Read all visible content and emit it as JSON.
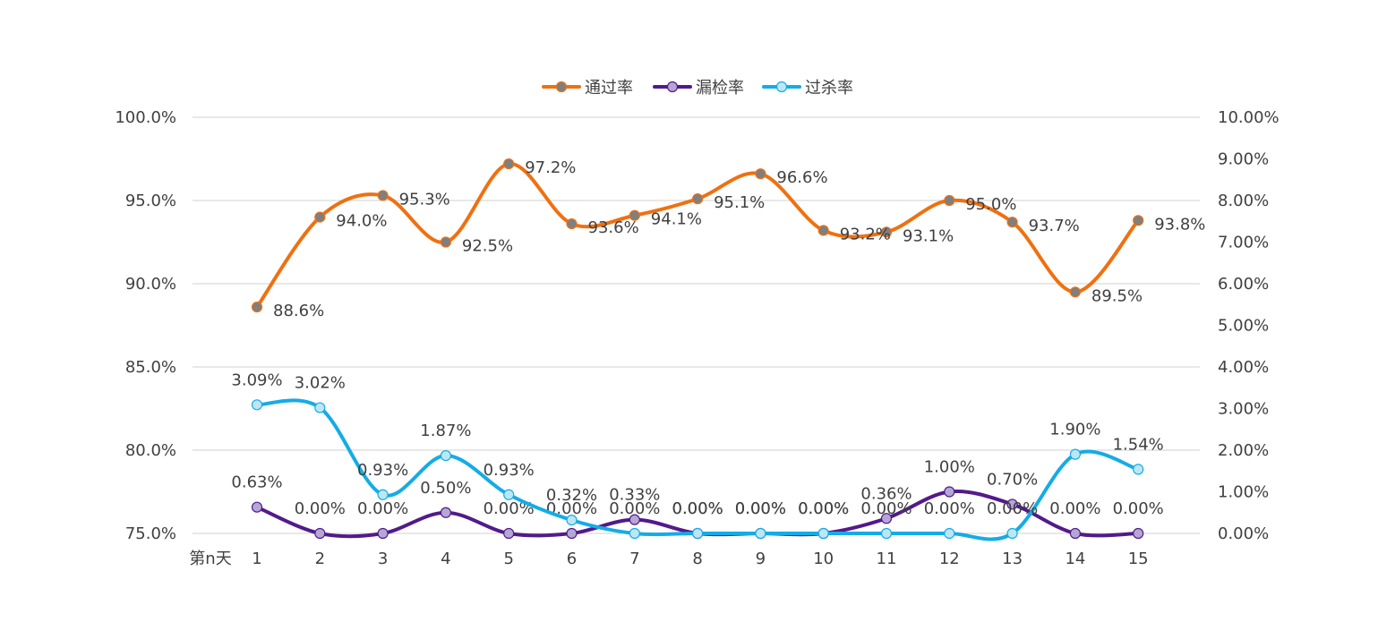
{
  "chart_data": {
    "type": "line",
    "xlabel": "第n天",
    "categories": [
      "1",
      "2",
      "3",
      "4",
      "5",
      "6",
      "7",
      "8",
      "9",
      "10",
      "11",
      "12",
      "13",
      "14",
      "15"
    ],
    "y_left": {
      "min": 75.0,
      "max": 100.0,
      "step": 5.0,
      "ticks": [
        "75.0%",
        "80.0%",
        "85.0%",
        "90.0%",
        "95.0%",
        "100.0%"
      ]
    },
    "y_right": {
      "min": 0.0,
      "max": 10.0,
      "step": 1.0,
      "ticks": [
        "0.00%",
        "1.00%",
        "2.00%",
        "3.00%",
        "4.00%",
        "5.00%",
        "6.00%",
        "7.00%",
        "8.00%",
        "9.00%",
        "10.00%"
      ]
    },
    "legend_position": "top-center",
    "grid": true,
    "series": [
      {
        "name": "通过率",
        "axis": "left",
        "color": "#F07010",
        "marker_fill": "#7F7F7F",
        "values": [
          88.6,
          94.0,
          95.3,
          92.5,
          97.2,
          93.6,
          94.1,
          95.1,
          96.6,
          93.2,
          93.1,
          95.0,
          93.7,
          89.5,
          93.8
        ],
        "labels": [
          "88.6%",
          "94.0%",
          "95.3%",
          "92.5%",
          "97.2%",
          "93.6%",
          "94.1%",
          "95.1%",
          "96.6%",
          "93.2%",
          "93.1%",
          "95.0%",
          "93.7%",
          "89.5%",
          "93.8%"
        ]
      },
      {
        "name": "漏检率",
        "axis": "right",
        "color": "#521A8A",
        "marker_fill": "#B4A7D6",
        "values": [
          0.63,
          0.0,
          0.0,
          0.5,
          0.0,
          0.0,
          0.33,
          0.0,
          0.0,
          0.0,
          0.36,
          1.0,
          0.7,
          0.0,
          0.0
        ],
        "labels": [
          "0.63%",
          "0.00%",
          "0.00%",
          "0.50%",
          "0.00%",
          "0.00%",
          "0.33%",
          "0.00%",
          "0.00%",
          "0.00%",
          "0.36%",
          "1.00%",
          "0.70%",
          "0.00%",
          "0.00%"
        ]
      },
      {
        "name": "过杀率",
        "axis": "right",
        "color": "#14ACE6",
        "marker_fill": "#BDE6F5",
        "values": [
          3.09,
          3.02,
          0.93,
          1.87,
          0.93,
          0.32,
          0.0,
          0.0,
          0.0,
          0.0,
          0.0,
          0.0,
          0.0,
          1.9,
          1.54
        ],
        "labels": [
          "3.09%",
          "3.02%",
          "0.93%",
          "1.87%",
          "0.93%",
          "0.32%",
          "0.00%",
          "0.00%",
          "0.00%",
          "0.00%",
          "0.00%",
          "0.00%",
          "0.00%",
          "1.90%",
          "1.54%"
        ]
      }
    ]
  }
}
